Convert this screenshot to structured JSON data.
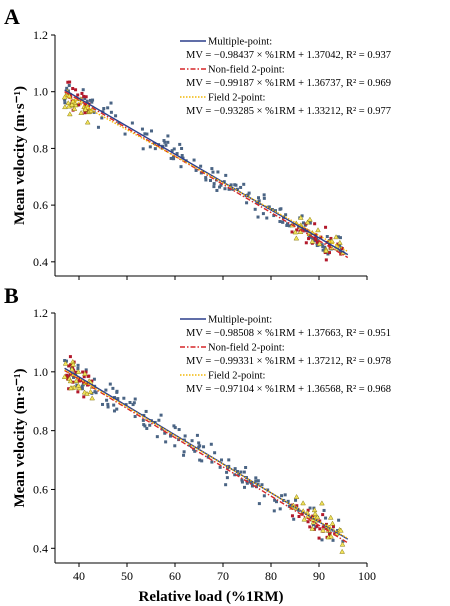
{
  "chart_data": [
    {
      "type": "scatter",
      "panel": "A",
      "title": "",
      "xlabel": "",
      "ylabel": "Mean velocity (m·s⁻¹)",
      "xlim": [
        35,
        100
      ],
      "ylim": [
        0.35,
        1.2
      ],
      "yticks": [
        "0.4",
        "0.6",
        "0.8",
        "1.0",
        "1.2"
      ],
      "xticks": [],
      "grid": false,
      "legend_position": "top-right",
      "series": [
        {
          "name": "Multiple-point:",
          "equation": "MV = −0.98437 × %1RM + 1.37042, R² = 0.937",
          "slope": -0.98437,
          "intercept": 1.37042,
          "color": "#2b3f8c",
          "dash": "solid",
          "marker": "square",
          "marker_color": "#4a6484"
        },
        {
          "name": "Non-field 2-point:",
          "equation": "MV = −0.99187 × %1RM + 1.36737, R² = 0.969",
          "slope": -0.99187,
          "intercept": 1.36737,
          "color": "#d62728",
          "dash": "dashdot",
          "marker": "square",
          "marker_color": "#b2182b"
        },
        {
          "name": "Field 2-point:",
          "equation": "MV = −0.93285 × %1RM + 1.33212, R² = 0.977",
          "slope": -0.93285,
          "intercept": 1.33212,
          "color": "#f2b707",
          "dash": "dotted",
          "marker": "triangle",
          "marker_color": "#f2e35a"
        }
      ],
      "points_seed": 11
    },
    {
      "type": "scatter",
      "panel": "B",
      "title": "",
      "xlabel": "Relative load (%1RM)",
      "ylabel": "Mean velocity (m·s⁻¹)",
      "xlim": [
        35,
        100
      ],
      "ylim": [
        0.35,
        1.2
      ],
      "yticks": [
        "0.4",
        "0.6",
        "0.8",
        "1.0",
        "1.2"
      ],
      "xticks": [
        "40",
        "50",
        "60",
        "70",
        "80",
        "90",
        "100"
      ],
      "grid": false,
      "legend_position": "top-right",
      "series": [
        {
          "name": "Multiple-point:",
          "equation": "MV = −0.98508 × %1RM + 1.37663, R² = 0.951",
          "slope": -0.98508,
          "intercept": 1.37663,
          "color": "#2b3f8c",
          "dash": "solid",
          "marker": "square",
          "marker_color": "#4a6484"
        },
        {
          "name": "Non-field 2-point:",
          "equation": "MV = −0.99331 × %1RM + 1.37212, R² = 0.978",
          "slope": -0.99331,
          "intercept": 1.37212,
          "color": "#d62728",
          "dash": "dashdot",
          "marker": "square",
          "marker_color": "#b2182b"
        },
        {
          "name": "Field 2-point:",
          "equation": "MV = −0.97104 × %1RM + 1.36568, R² = 0.968",
          "slope": -0.97104,
          "intercept": 1.36568,
          "color": "#f2b707",
          "dash": "dotted",
          "marker": "triangle",
          "marker_color": "#f2e35a"
        }
      ],
      "points_seed": 29
    }
  ]
}
